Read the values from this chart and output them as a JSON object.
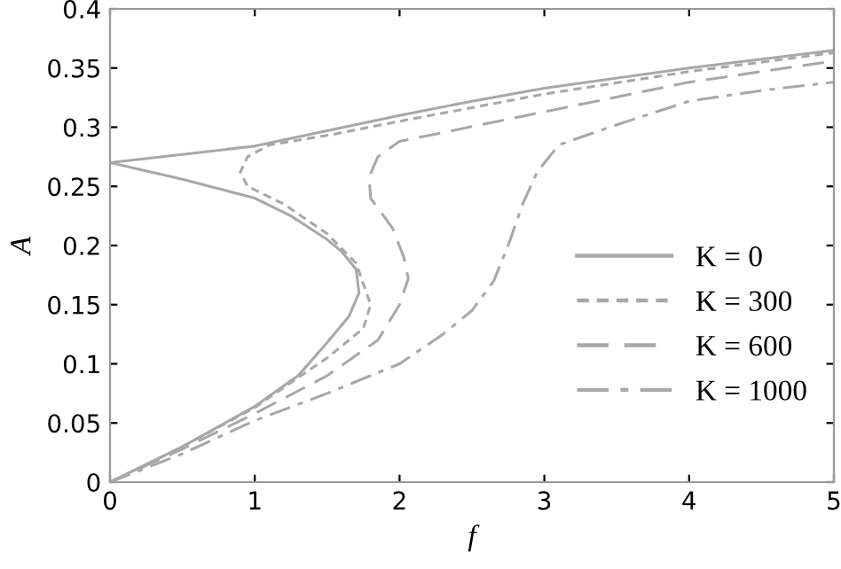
{
  "chart_data": {
    "type": "line",
    "xlabel": "f",
    "ylabel": "A",
    "xlim": [
      0,
      5
    ],
    "ylim": [
      0,
      0.4
    ],
    "xticks": [
      0,
      1,
      2,
      3,
      4,
      5
    ],
    "yticks": [
      0,
      0.05,
      0.1,
      0.15,
      0.2,
      0.25,
      0.3,
      0.35,
      0.4
    ],
    "grid": false,
    "legend": "right",
    "marker": "none",
    "series": [
      {
        "name": "K = 0",
        "color": "#a8a8a8",
        "line_style": "solid",
        "x": [
          0,
          0.5,
          1,
          1.3,
          1.5,
          1.65,
          1.72,
          1.7,
          1.6,
          1.5,
          1.25,
          1,
          0.5,
          0,
          0.5,
          1,
          1.5,
          2,
          2.5,
          3,
          4,
          5
        ],
        "values": [
          0,
          0.03,
          0.064,
          0.09,
          0.118,
          0.14,
          0.16,
          0.18,
          0.195,
          0.205,
          0.225,
          0.24,
          0.256,
          0.27,
          0.277,
          0.284,
          0.297,
          0.31,
          0.322,
          0.333,
          0.35,
          0.365
        ]
      },
      {
        "name": "K = 300",
        "color": "#a8a8a8",
        "line_style": "dashed",
        "x": [
          0,
          0.5,
          1,
          1.2,
          1.5,
          1.75,
          1.8,
          1.7,
          1.5,
          1.2,
          0.95,
          0.9,
          0.95,
          1.1,
          1.5,
          2,
          3,
          4,
          5
        ],
        "values": [
          0,
          0.03,
          0.063,
          0.08,
          0.105,
          0.13,
          0.15,
          0.185,
          0.21,
          0.235,
          0.25,
          0.262,
          0.275,
          0.285,
          0.293,
          0.305,
          0.328,
          0.347,
          0.363
        ]
      },
      {
        "name": "K = 600",
        "color": "#a8a8a8",
        "line_style": "dashdash",
        "x": [
          0,
          0.5,
          1,
          1.5,
          1.85,
          2.0,
          2.06,
          2.03,
          1.95,
          1.8,
          1.79,
          1.85,
          2,
          3,
          4,
          5
        ],
        "values": [
          0,
          0.028,
          0.058,
          0.09,
          0.12,
          0.15,
          0.172,
          0.19,
          0.215,
          0.24,
          0.258,
          0.275,
          0.288,
          0.313,
          0.338,
          0.356
        ]
      },
      {
        "name": "K = 1000",
        "color": "#a8a8a8",
        "line_style": "dashdot",
        "x": [
          0,
          0.5,
          1,
          1.5,
          2,
          2.3,
          2.5,
          2.65,
          2.75,
          2.85,
          2.95,
          3.1,
          3.45,
          4,
          4.5,
          5
        ],
        "values": [
          0,
          0.024,
          0.052,
          0.075,
          0.1,
          0.125,
          0.145,
          0.17,
          0.2,
          0.235,
          0.262,
          0.285,
          0.3,
          0.322,
          0.331,
          0.338
        ]
      }
    ]
  }
}
